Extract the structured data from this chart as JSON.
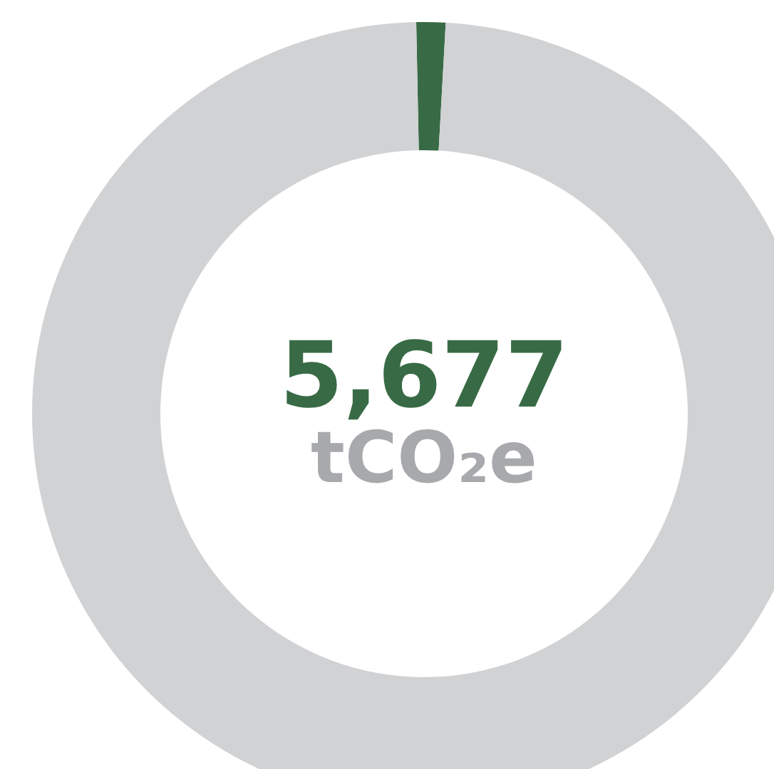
{
  "chart_data": {
    "type": "donut",
    "categories": [
      null,
      null
    ],
    "values": [
      1.2,
      98.8
    ],
    "colors": [
      "#386b45",
      "#d1d2d4"
    ],
    "annotations": [
      "5,677",
      "tCO₂e"
    ]
  }
}
